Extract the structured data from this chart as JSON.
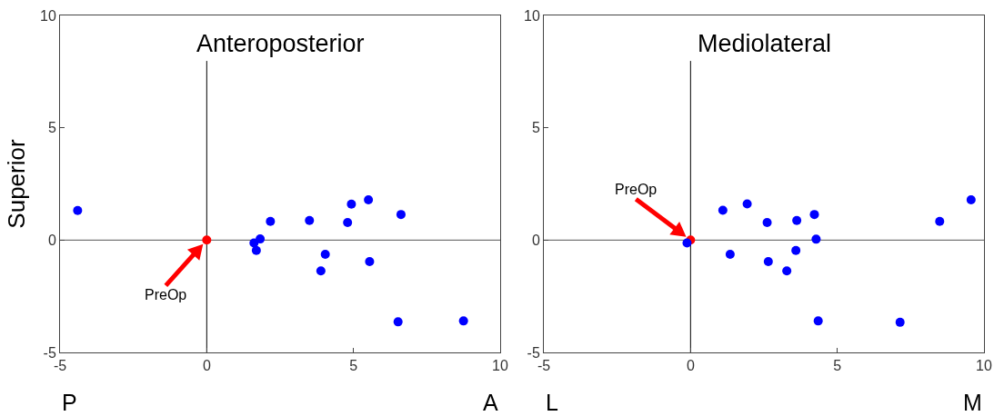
{
  "chart_data": [
    {
      "type": "scatter",
      "title": "Anteroposterior",
      "ylabel": "Superior",
      "xlim": [
        -5,
        10
      ],
      "ylim": [
        -5,
        10
      ],
      "xticks": [
        -5,
        0,
        5,
        10
      ],
      "yticks": [
        -5,
        0,
        5,
        10
      ],
      "grid": false,
      "marker": "circle",
      "series": [
        {
          "color": "#ff0000",
          "x": [
            0
          ],
          "values": [
            0
          ]
        },
        {
          "color": "#0000ff",
          "x": [
            -4.4,
            2.17,
            3.5,
            4.8,
            4.93,
            5.51,
            6.62,
            1.82,
            1.61,
            1.69,
            4.04,
            3.89,
            5.55,
            6.52,
            8.75
          ],
          "values": [
            1.32,
            0.83,
            0.87,
            0.78,
            1.6,
            1.79,
            1.14,
            0.05,
            -0.13,
            -0.46,
            -0.63,
            -1.37,
            -0.96,
            -3.64,
            -3.6
          ]
        }
      ],
      "ref_lines": [
        {
          "axis": "x",
          "value": 0,
          "color": "#000000"
        },
        {
          "axis": "y",
          "value": 0,
          "color": "#555555"
        }
      ],
      "annotations": [
        {
          "text": "PreOp",
          "x": 0,
          "y": 0
        },
        "P",
        "A"
      ]
    },
    {
      "type": "scatter",
      "title": "Mediolateral",
      "xlim": [
        -5,
        10
      ],
      "ylim": [
        -5,
        10
      ],
      "xticks": [
        -5,
        0,
        5,
        10
      ],
      "yticks": [
        -5,
        0,
        5,
        10
      ],
      "grid": false,
      "marker": "circle",
      "series": [
        {
          "color": "#ff0000",
          "x": [
            0
          ],
          "values": [
            0
          ]
        },
        {
          "color": "#0000ff",
          "x": [
            -0.12,
            1.1,
            1.93,
            2.61,
            3.62,
            4.22,
            4.28,
            3.59,
            1.35,
            2.65,
            3.28,
            4.35,
            7.14,
            8.49,
            9.56
          ],
          "values": [
            -0.13,
            1.33,
            1.61,
            0.78,
            0.87,
            1.14,
            0.04,
            -0.46,
            -0.63,
            -0.96,
            -1.37,
            -3.6,
            -3.66,
            0.83,
            1.79
          ]
        }
      ],
      "ref_lines": [
        {
          "axis": "x",
          "value": 0,
          "color": "#000000"
        },
        {
          "axis": "y",
          "value": 0,
          "color": "#555555"
        }
      ],
      "annotations": [
        {
          "text": "PreOp",
          "x": 0,
          "y": 0
        },
        "L",
        "M"
      ]
    }
  ]
}
